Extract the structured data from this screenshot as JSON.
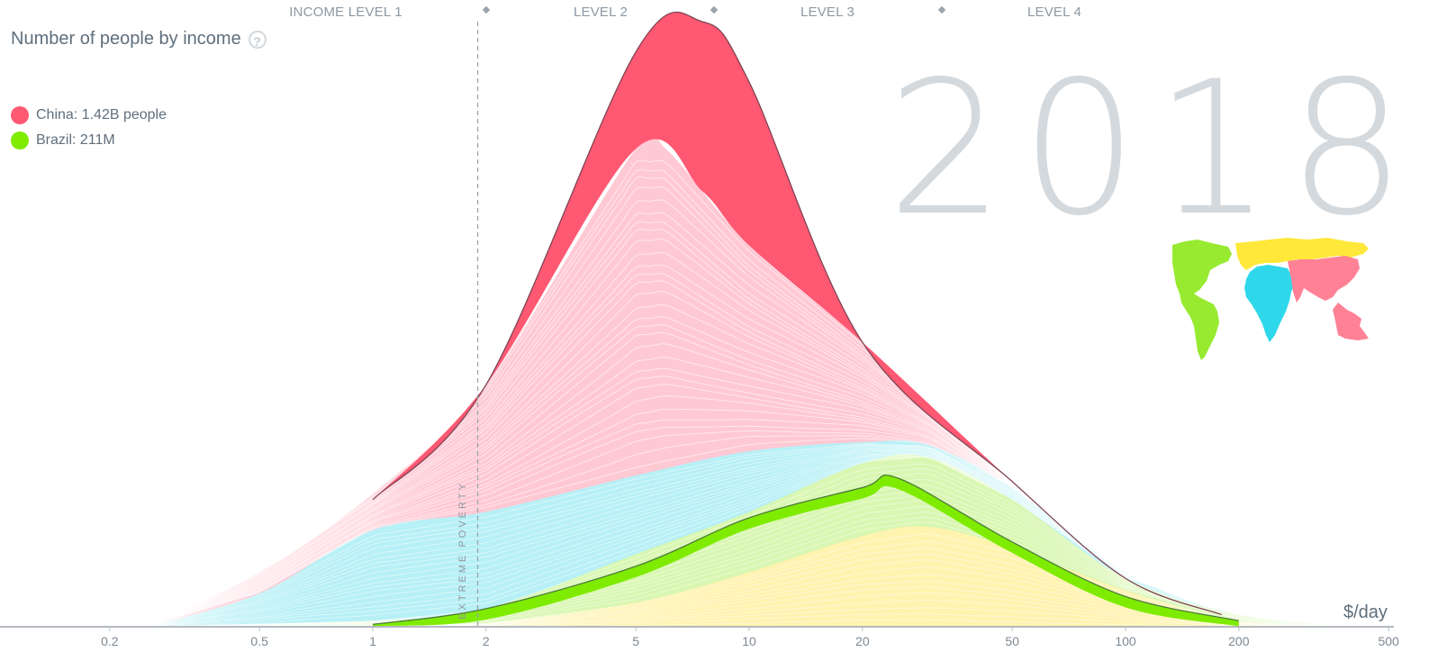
{
  "header": {
    "income_levels": [
      {
        "label": "INCOME LEVEL 1"
      },
      {
        "label": "LEVEL 2"
      },
      {
        "label": "LEVEL 3"
      },
      {
        "label": "LEVEL 4"
      }
    ]
  },
  "title": "Number of people by income",
  "legend": [
    {
      "name": "China: 1.42B people",
      "color": "#ff5872"
    },
    {
      "name": "Brazil: 211M",
      "color": "#7feb00"
    }
  ],
  "year": "2018",
  "axis_unit": "$/day",
  "poverty_label": "EXTREME POVERTY",
  "help_icon": "question-circle-icon",
  "map_icon": "world-regions-map-icon",
  "colors": {
    "asia_fill": "#ffc9d4",
    "africa_fill": "#b7f0f6",
    "americas_fill": "#d9f7b2",
    "europe_fill": "#fff3b0",
    "china": "#ff5872",
    "brazil": "#7feb00",
    "axis": "#9ba4ad",
    "year": "#d4d9dd"
  },
  "chart_data": {
    "type": "area",
    "x_scale": "log",
    "xlim": [
      0.12,
      500
    ],
    "x_ticks": [
      0.2,
      0.5,
      1,
      2,
      5,
      10,
      20,
      50,
      100,
      200,
      500
    ],
    "x_tick_labels": [
      "0.2",
      "0.5",
      "1",
      "2",
      "5",
      "10",
      "20",
      "50",
      "100",
      "200",
      "500"
    ],
    "xlabel": "$/day",
    "poverty_line": 1.9,
    "series": [
      {
        "name": "China: 1.42B people",
        "peak_income": 7.5,
        "points": [
          [
            1,
            0.21
          ],
          [
            2,
            0.4
          ],
          [
            5,
            0.95
          ],
          [
            7.5,
            1.0
          ],
          [
            10,
            0.9
          ],
          [
            20,
            0.47
          ],
          [
            50,
            0.24
          ],
          [
            100,
            0.08
          ],
          [
            180,
            0.02
          ]
        ]
      },
      {
        "name": "Brazil: 211M",
        "peak_income": 25,
        "points": [
          [
            1,
            0.004
          ],
          [
            2,
            0.03
          ],
          [
            5,
            0.1
          ],
          [
            10,
            0.18
          ],
          [
            20,
            0.23
          ],
          [
            25,
            0.245
          ],
          [
            50,
            0.14
          ],
          [
            100,
            0.05
          ],
          [
            200,
            0.01
          ]
        ]
      }
    ],
    "regions": [
      {
        "key": "europe",
        "color": "#fff3b0",
        "points": [
          [
            0.25,
            0.0
          ],
          [
            1,
            0.002
          ],
          [
            2,
            0.006
          ],
          [
            5,
            0.04
          ],
          [
            10,
            0.09
          ],
          [
            20,
            0.15
          ],
          [
            30,
            0.165
          ],
          [
            50,
            0.13
          ],
          [
            100,
            0.06
          ],
          [
            200,
            0.01
          ],
          [
            450,
            0.0
          ]
        ]
      },
      {
        "key": "americas",
        "color": "#d9f7b2",
        "points": [
          [
            0.25,
            0.0
          ],
          [
            1,
            0.01
          ],
          [
            2,
            0.03
          ],
          [
            5,
            0.12
          ],
          [
            10,
            0.19
          ],
          [
            20,
            0.27
          ],
          [
            30,
            0.28
          ],
          [
            50,
            0.21
          ],
          [
            100,
            0.08
          ],
          [
            200,
            0.02
          ],
          [
            450,
            0.0
          ]
        ]
      },
      {
        "key": "africa",
        "color": "#b7f0f6",
        "points": [
          [
            0.25,
            0.0
          ],
          [
            0.5,
            0.055
          ],
          [
            1,
            0.16
          ],
          [
            2,
            0.19
          ],
          [
            5,
            0.25
          ],
          [
            10,
            0.29
          ],
          [
            20,
            0.305
          ],
          [
            30,
            0.3
          ],
          [
            50,
            0.23
          ],
          [
            100,
            0.09
          ],
          [
            200,
            0.02
          ],
          [
            450,
            0.0
          ]
        ]
      },
      {
        "key": "asia",
        "color": "#ffc9d4",
        "points": [
          [
            0.25,
            0.0
          ],
          [
            0.5,
            0.09
          ],
          [
            1,
            0.22
          ],
          [
            2,
            0.4
          ],
          [
            5,
            0.79
          ],
          [
            6,
            0.79
          ],
          [
            10,
            0.63
          ],
          [
            20,
            0.47
          ],
          [
            50,
            0.24
          ],
          [
            100,
            0.09
          ],
          [
            200,
            0.02
          ],
          [
            450,
            0.0
          ]
        ]
      }
    ]
  }
}
